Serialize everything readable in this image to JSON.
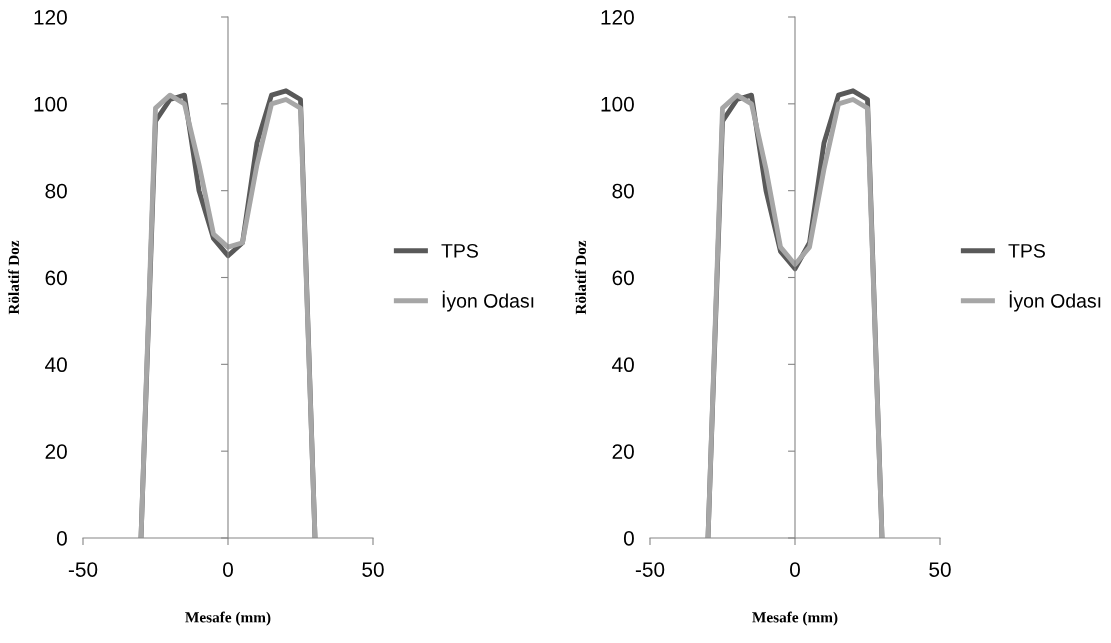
{
  "chart_data": [
    {
      "type": "line",
      "x": [
        -30,
        -25,
        -20,
        -15,
        -10,
        -5,
        0,
        5,
        10,
        15,
        20,
        25,
        30
      ],
      "xlabel": "Mesafe (mm)",
      "ylabel": "Rölatif Doz",
      "xlim": [
        -50,
        50
      ],
      "xticks": [
        -50,
        0,
        50
      ],
      "ylim": [
        0,
        120
      ],
      "yticks": [
        0,
        20,
        40,
        60,
        80,
        100,
        120
      ],
      "legend": "right",
      "marker": "none",
      "line_style": "solid",
      "series": [
        {
          "name": "TPS",
          "color": "#595959",
          "values": [
            0,
            96,
            101,
            102,
            80,
            69,
            65,
            68,
            91,
            102,
            103,
            101,
            0
          ]
        },
        {
          "name": "İyon Odası",
          "color": "#a6a6a6",
          "values": [
            0,
            99,
            102,
            100,
            86,
            70,
            67,
            68,
            86,
            100,
            101,
            99,
            0
          ]
        }
      ]
    },
    {
      "type": "line",
      "x": [
        -30,
        -25,
        -20,
        -15,
        -10,
        -5,
        0,
        5,
        10,
        15,
        20,
        25,
        30
      ],
      "xlabel": "Mesafe (mm)",
      "ylabel": "Rölatif Doz",
      "xlim": [
        -50,
        50
      ],
      "xticks": [
        -50,
        0,
        50
      ],
      "ylim": [
        0,
        120
      ],
      "yticks": [
        0,
        20,
        40,
        60,
        80,
        100,
        120
      ],
      "legend": "right",
      "marker": "none",
      "line_style": "solid",
      "series": [
        {
          "name": "TPS",
          "color": "#595959",
          "values": [
            0,
            96,
            101,
            102,
            80,
            66,
            62,
            68,
            91,
            102,
            103,
            101,
            0
          ]
        },
        {
          "name": "İyon Odası",
          "color": "#a6a6a6",
          "values": [
            0,
            99,
            102,
            100,
            85,
            67,
            63,
            67,
            85,
            100,
            101,
            99,
            0
          ]
        }
      ]
    }
  ]
}
